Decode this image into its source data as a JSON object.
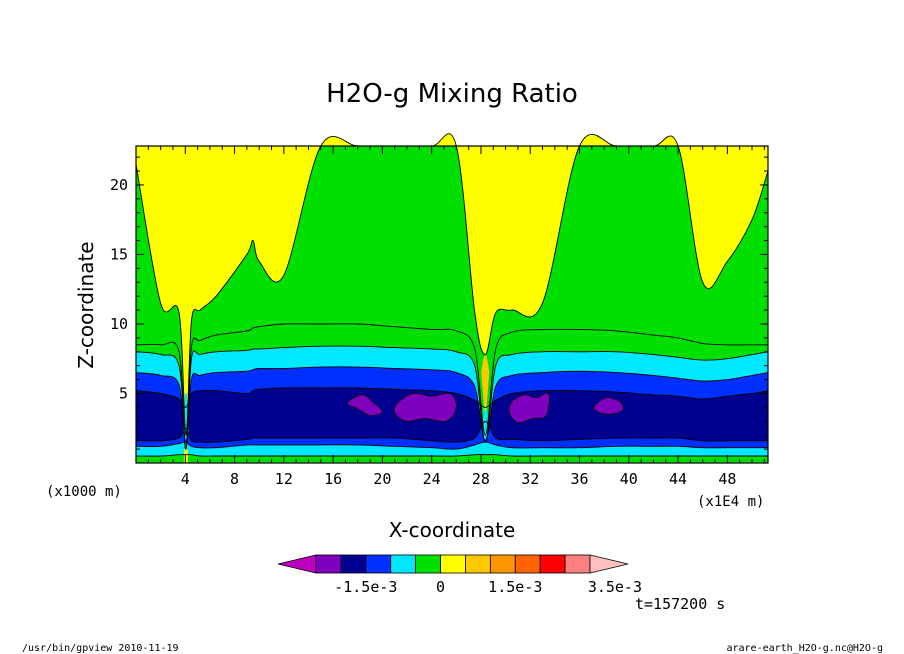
{
  "footer": {
    "left": "/usr/bin/gpview  2010-11-19",
    "right": "arare-earth_H2O-g.nc@H2O-g"
  },
  "chart_data": {
    "type": "contour",
    "title": "H2O-g Mixing Ratio",
    "xlabel": "X-coordinate",
    "ylabel": "Z-coordinate",
    "x_units": "(x1E4 m)",
    "y_units": "(x1000 m)",
    "time_label": "t=157200 s",
    "xlim": [
      0,
      51.3
    ],
    "ylim": [
      0,
      22.8
    ],
    "x_ticks": [
      4,
      8,
      12,
      16,
      20,
      24,
      28,
      32,
      36,
      40,
      44,
      48
    ],
    "y_ticks": [
      5,
      10,
      15,
      20
    ],
    "legend": {
      "levels": [
        "-2.5e-3",
        "-2e-3",
        "-1.5e-3",
        "-1e-3",
        "-5e-4",
        "0",
        "5e-4",
        "1e-3",
        "1.5e-3",
        "2e-3",
        "2.5e-3",
        "3e-3",
        "3.5e-3"
      ],
      "tick_labels": [
        {
          "label": "-1.5e-3",
          "value": -0.0015
        },
        {
          "label": "0",
          "value": 0
        },
        {
          "label": "1.5e-3",
          "value": 0.0015
        },
        {
          "label": "3.5e-3",
          "value": 0.0035
        }
      ],
      "colors": [
        "#c000c0",
        "#8000c0",
        "#000090",
        "#0030ff",
        "#00e8ff",
        "#00e000",
        "#ffff00",
        "#ffc800",
        "#ff9600",
        "#ff6400",
        "#ff0000",
        "#ff8080",
        "#ffc0c0"
      ]
    },
    "profile_x": [
      0,
      2,
      3.5,
      4.05,
      4.5,
      5.2,
      6.5,
      9,
      9.5,
      10,
      12,
      15,
      18,
      21,
      24,
      26,
      27.5,
      28.35,
      29.2,
      30.5,
      33,
      36,
      39,
      42,
      44,
      46,
      48,
      50,
      51.3
    ],
    "level_heights": {
      "yellow_base": [
        21.5,
        11.5,
        10.8,
        2.0,
        10.2,
        11.0,
        12.0,
        15.0,
        16.0,
        14.5,
        13.5,
        22.8,
        22.8,
        22.8,
        22.8,
        22.8,
        10.8,
        7.8,
        10.8,
        11.0,
        11.5,
        22.8,
        22.8,
        22.8,
        22.8,
        13.0,
        14.5,
        17.5,
        21.0
      ],
      "green_base": [
        8.5,
        8.5,
        8.0,
        1.0,
        8.3,
        8.8,
        9.2,
        9.5,
        9.7,
        9.8,
        10.0,
        10.0,
        10.0,
        9.8,
        9.6,
        9.5,
        8.2,
        2.0,
        8.2,
        9.4,
        9.6,
        9.6,
        9.5,
        9.2,
        9.0,
        8.6,
        8.5,
        8.5,
        8.5
      ],
      "cyan_base": [
        8.0,
        7.8,
        7.0,
        1.0,
        7.5,
        7.8,
        8.0,
        8.1,
        8.2,
        8.2,
        8.3,
        8.4,
        8.4,
        8.3,
        8.2,
        8.0,
        7.0,
        1.5,
        7.0,
        7.8,
        8.0,
        8.0,
        8.0,
        7.8,
        7.6,
        7.4,
        7.5,
        7.8,
        8.0
      ],
      "blue_base": [
        6.5,
        6.3,
        5.6,
        1.0,
        6.0,
        6.3,
        6.5,
        6.6,
        6.7,
        6.8,
        6.8,
        6.9,
        6.9,
        6.8,
        6.7,
        6.5,
        5.5,
        1.5,
        5.5,
        6.3,
        6.5,
        6.6,
        6.5,
        6.3,
        6.1,
        5.9,
        6.0,
        6.3,
        6.5
      ],
      "dark_base": [
        5.2,
        5.0,
        4.6,
        4.0,
        5.0,
        5.2,
        5.2,
        5.0,
        5.2,
        5.3,
        5.4,
        5.4,
        5.4,
        5.3,
        5.2,
        5.0,
        4.5,
        4.0,
        4.5,
        5.0,
        5.2,
        5.2,
        5.1,
        4.9,
        4.8,
        4.6,
        4.8,
        5.0,
        5.2
      ],
      "dark_top": [
        1.6,
        1.6,
        1.8,
        2.5,
        1.6,
        1.5,
        1.5,
        1.7,
        1.8,
        1.8,
        1.8,
        1.8,
        1.8,
        1.8,
        1.6,
        1.5,
        1.8,
        3.0,
        1.8,
        1.7,
        1.6,
        1.7,
        1.8,
        1.8,
        1.8,
        1.6,
        1.6,
        1.6,
        1.6
      ],
      "blue_top": [
        1.2,
        1.2,
        1.4,
        1.5,
        1.2,
        1.1,
        1.1,
        1.3,
        1.3,
        1.3,
        1.3,
        1.3,
        1.3,
        1.2,
        1.1,
        1.0,
        1.3,
        1.5,
        1.3,
        1.1,
        1.1,
        1.1,
        1.2,
        1.2,
        1.2,
        1.1,
        1.1,
        1.1,
        1.1
      ],
      "cyan_top": [
        0.5,
        0.5,
        0.6,
        0.6,
        0.6,
        0.5,
        0.5,
        0.5,
        0.5,
        0.5,
        0.5,
        0.5,
        0.5,
        0.5,
        0.5,
        0.5,
        0.6,
        0.6,
        0.6,
        0.5,
        0.5,
        0.5,
        0.5,
        0.5,
        0.5,
        0.5,
        0.5,
        0.5,
        0.5
      ]
    },
    "minima_regions": [
      {
        "x": [
          17.5,
          18.5,
          19.2,
          20.0,
          19.0,
          18.0,
          17.2
        ],
        "y": [
          4.6,
          4.9,
          4.4,
          3.7,
          3.4,
          3.9,
          4.2
        ]
      },
      {
        "x": [
          21.2,
          22.5,
          24.0,
          25.5,
          26.0,
          25.2,
          23.5,
          22.0,
          21.0
        ],
        "y": [
          4.3,
          5.0,
          4.8,
          5.0,
          4.0,
          3.0,
          3.2,
          3.0,
          3.6
        ]
      },
      {
        "x": [
          30.5,
          31.5,
          32.5,
          33.5,
          33.3,
          32.2,
          31.0,
          30.3
        ],
        "y": [
          4.4,
          4.9,
          4.7,
          5.0,
          3.4,
          3.2,
          2.9,
          3.6
        ]
      },
      {
        "x": [
          37.2,
          38.2,
          39.3,
          39.5,
          38.5,
          37.4
        ],
        "y": [
          4.1,
          4.7,
          4.4,
          3.8,
          3.5,
          3.7
        ]
      }
    ]
  }
}
